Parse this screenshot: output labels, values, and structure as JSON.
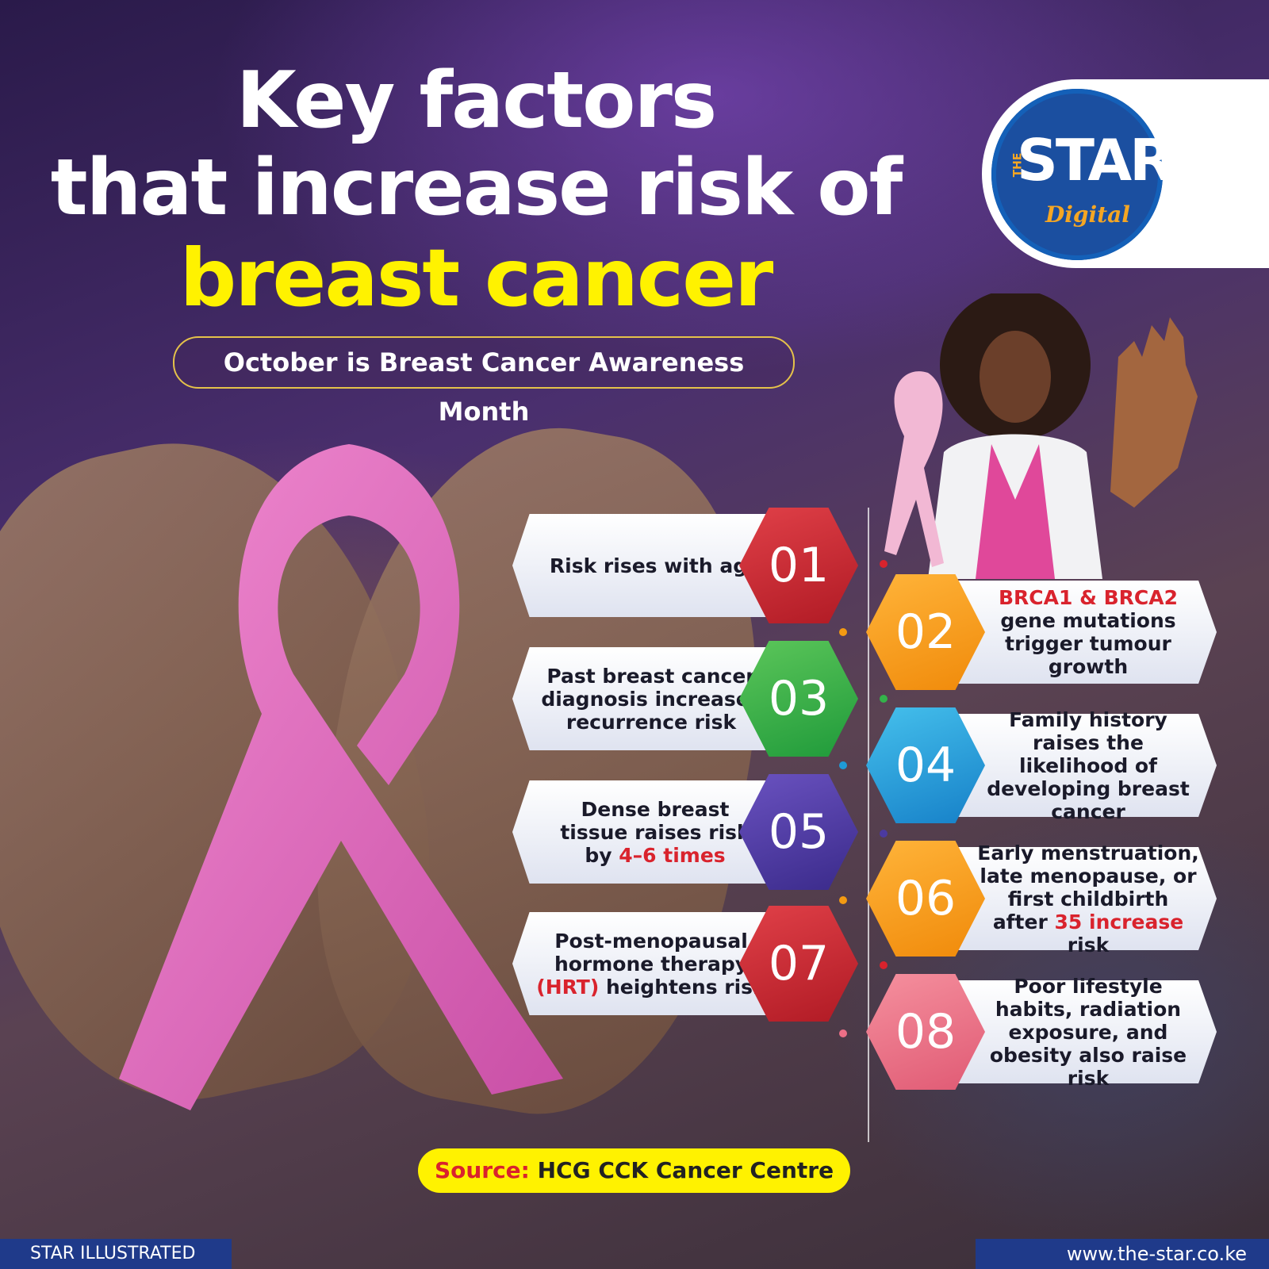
{
  "title": {
    "line1": "Key factors",
    "line2": "that increase risk of",
    "line3": "breast cancer"
  },
  "subtitle": "October is Breast Cancer Awareness Month",
  "logo": {
    "the": "THE",
    "star": "STAR",
    "digital": "Digital"
  },
  "factors": [
    {
      "number": "01",
      "side": "left",
      "color": "#c8202b",
      "parts": [
        "Risk rises with age"
      ]
    },
    {
      "number": "02",
      "side": "right",
      "color": "#f39a12",
      "highlight": "BRCA1 & BRCA2",
      "parts": [
        "gene mutations trigger tumour growth"
      ]
    },
    {
      "number": "03",
      "side": "left",
      "color": "#34b24a",
      "parts": [
        "Past breast cancer diagnosis increases recurrence risk"
      ]
    },
    {
      "number": "04",
      "side": "right",
      "color": "#1f9bd7",
      "parts": [
        "Family history raises the likelihood of developing breast cancer"
      ]
    },
    {
      "number": "05",
      "side": "left",
      "color": "#4b3aa0",
      "pre": "Dense breast tissue raises risk by ",
      "highlight": "4–6 times"
    },
    {
      "number": "06",
      "side": "right",
      "color": "#f39a12",
      "pre": "Early menstruation, late menopause, or first childbirth after ",
      "highlight": "35 increase",
      "post": " risk"
    },
    {
      "number": "07",
      "side": "left",
      "color": "#c8202b",
      "pre": "Post-menopausal hormone therapy ",
      "highlight": "(HRT)",
      "post": " heightens risk"
    },
    {
      "number": "08",
      "side": "right",
      "color": "#ec6f86",
      "parts": [
        "Poor lifestyle habits, radiation exposure, and obesity also raise risk"
      ]
    }
  ],
  "source": {
    "label": "Source:",
    "value": " HCG CCK Cancer Centre"
  },
  "footer": {
    "left": "STAR ILLUSTRATED",
    "right": "www.the-star.co.ke"
  },
  "colors": {
    "title_yellow": "#fff200",
    "highlight_red": "#d9232d",
    "footer_blue": "#1f3a8a"
  }
}
